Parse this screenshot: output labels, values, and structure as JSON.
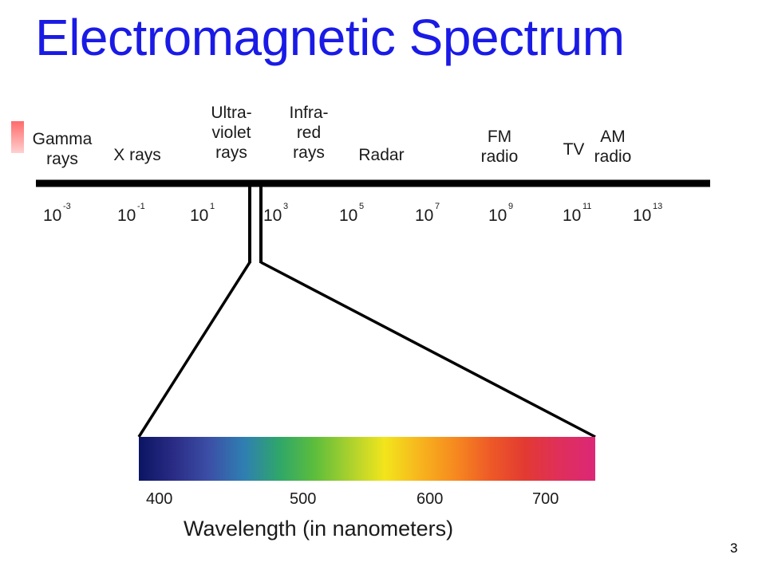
{
  "slide": {
    "title": "Electromagnetic Spectrum",
    "page_number": "3"
  },
  "spectrum": {
    "bands": [
      {
        "lines": [
          "Gamma",
          "rays"
        ]
      },
      {
        "lines": [
          "X rays"
        ]
      },
      {
        "lines": [
          "Ultra-",
          "violet",
          "rays"
        ]
      },
      {
        "lines": [
          "Infra-",
          "red",
          "rays"
        ]
      },
      {
        "lines": [
          "Radar"
        ]
      },
      {
        "lines": [
          "FM",
          "radio"
        ]
      },
      {
        "lines": [
          "TV"
        ]
      },
      {
        "lines": [
          "AM",
          "radio"
        ]
      }
    ],
    "scale": [
      {
        "base": "10",
        "exp": "-3"
      },
      {
        "base": "10",
        "exp": "-1"
      },
      {
        "base": "10",
        "exp": "1"
      },
      {
        "base": "10",
        "exp": "3"
      },
      {
        "base": "10",
        "exp": "5"
      },
      {
        "base": "10",
        "exp": "7"
      },
      {
        "base": "10",
        "exp": "9"
      },
      {
        "base": "10",
        "exp": "11"
      },
      {
        "base": "10",
        "exp": "13"
      }
    ]
  },
  "visible": {
    "ticks": [
      "400",
      "500",
      "600",
      "700"
    ],
    "axis_title": "Wavelength (in nanometers)",
    "gradient_colors": [
      "#0b1563",
      "#2a2c85",
      "#3b4fa6",
      "#2f7fb2",
      "#2fa66a",
      "#5cbd3c",
      "#a9d12e",
      "#f2e51c",
      "#f7b51e",
      "#f68a1f",
      "#ee5a27",
      "#e23a32",
      "#df2f5b",
      "#dc2777"
    ]
  }
}
